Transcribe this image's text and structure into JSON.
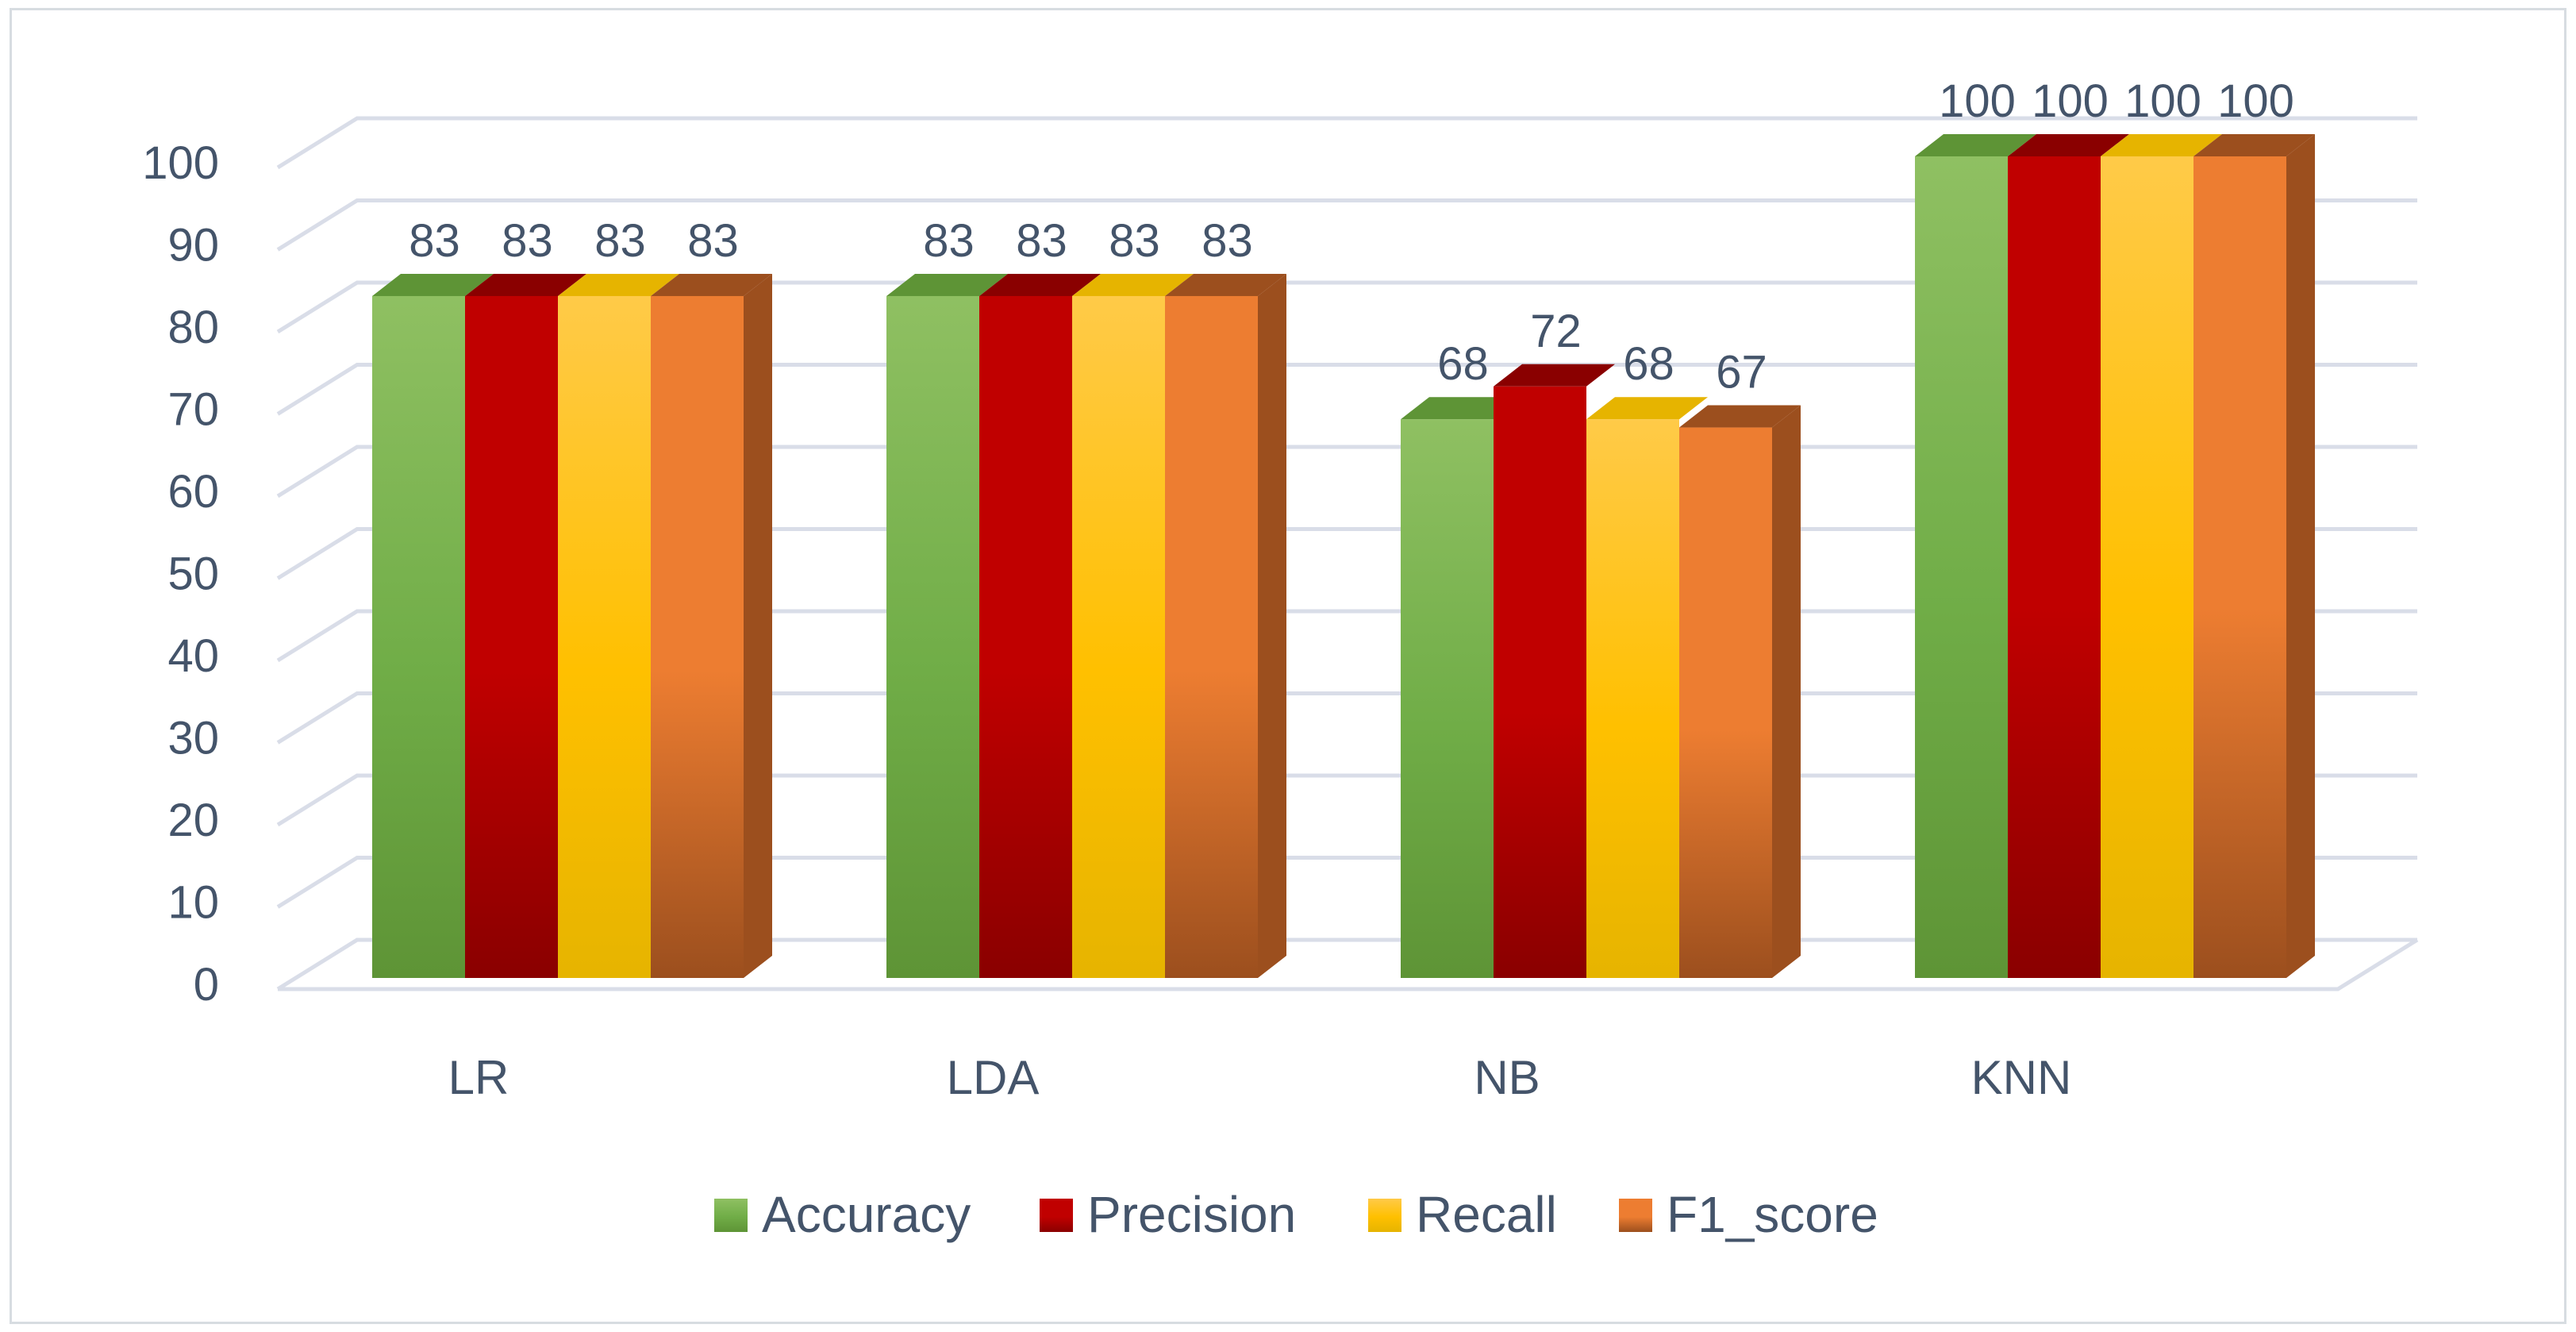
{
  "chart_data": {
    "type": "bar",
    "style": "3d-clustered-column",
    "title": "",
    "xlabel": "",
    "ylabel": "",
    "ylim": [
      0,
      100
    ],
    "yticks": [
      0,
      10,
      20,
      30,
      40,
      50,
      60,
      70,
      80,
      90,
      100
    ],
    "grid": true,
    "legend_position": "bottom",
    "categories": [
      "LR",
      "LDA",
      "NB",
      "KNN"
    ],
    "series": [
      {
        "name": "Accuracy",
        "values": [
          83,
          83,
          68,
          100
        ],
        "color": "#70ad47",
        "color_light": "#8fc062",
        "color_dark": "#5e9436"
      },
      {
        "name": "Precision",
        "values": [
          83,
          83,
          72,
          100
        ],
        "color": "#c00000",
        "color_light": "#c00000",
        "color_dark": "#8a0000"
      },
      {
        "name": "Recall",
        "values": [
          83,
          83,
          68,
          100
        ],
        "color": "#ffc000",
        "color_light": "#ffca48",
        "color_dark": "#e6b400"
      },
      {
        "name": "F1_score",
        "values": [
          83,
          83,
          67,
          100
        ],
        "color": "#ed7d31",
        "color_light": "#ed7d31",
        "color_dark": "#9c4f1e"
      }
    ],
    "colors": {
      "grid": "#d9dde8",
      "text": "#44546a"
    }
  }
}
